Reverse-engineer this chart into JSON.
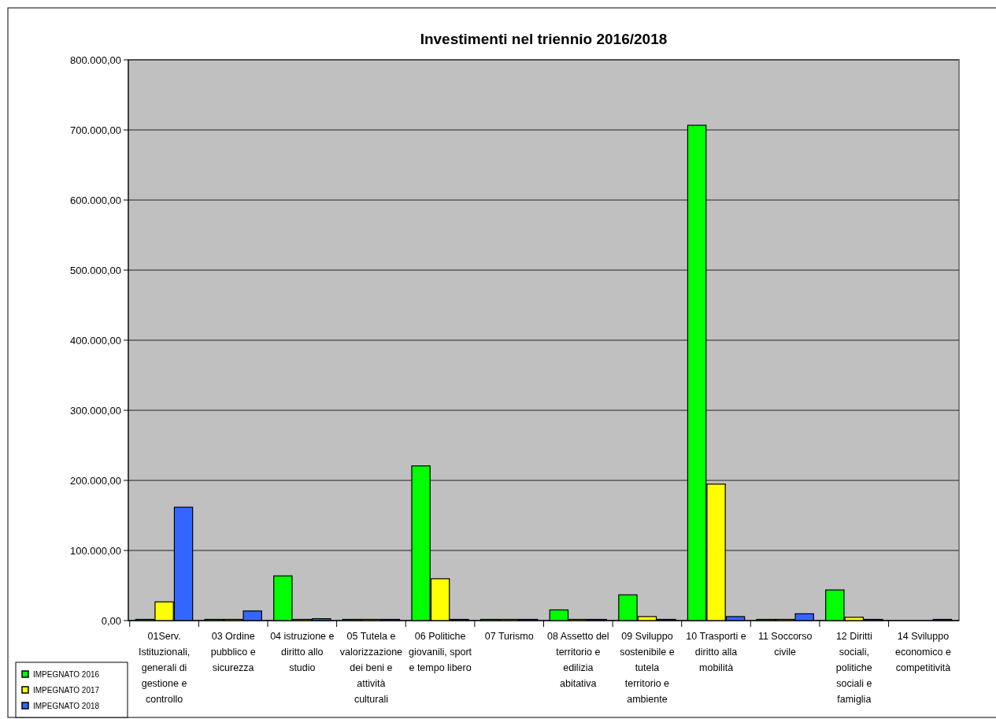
{
  "chart_data": {
    "type": "bar",
    "title": "Investimenti nel triennio 2016/2018",
    "categories": [
      "01Serv. Istituzionali, generali di gestione e controllo",
      "03 Ordine pubblico e sicurezza",
      "04 istruzione e diritto allo studio",
      "05 Tutela e valorizzazione dei beni e attività culturali",
      "06 Politiche giovanili, sport e tempo libero",
      "07 Turismo",
      "08 Assetto del territorio e edilizia abitativa",
      "09 Sviluppo sostenibile e tutela territorio e ambiente",
      "10 Trasporti e diritto alla mobilità",
      "11 Soccorso civile",
      "12 Diritti sociali, politiche sociali e famiglia",
      "14 Sviluppo economico e competitività"
    ],
    "series": [
      {
        "name": "IMPEGNATO 2016",
        "color": "#00ff00",
        "values": [
          0,
          0,
          62000,
          0,
          219000,
          0,
          13500,
          35000,
          705000,
          0,
          42000,
          null
        ]
      },
      {
        "name": "IMPEGNATO 2017",
        "color": "#ffff00",
        "values": [
          25000,
          0,
          0,
          0,
          58000,
          0,
          0,
          4000,
          193000,
          0,
          3000,
          null
        ]
      },
      {
        "name": "IMPEGNATO 2018",
        "color": "#3366ff",
        "values": [
          160000,
          12000,
          1000,
          0,
          0,
          0,
          0,
          0,
          4000,
          8000,
          0,
          0
        ]
      }
    ],
    "ylim": [
      0,
      800000
    ],
    "yticks": [
      {
        "value": 0,
        "label": "0,00"
      },
      {
        "value": 100000,
        "label": "100.000,00"
      },
      {
        "value": 200000,
        "label": "200.000,00"
      },
      {
        "value": 300000,
        "label": "300.000,00"
      },
      {
        "value": 400000,
        "label": "400.000,00"
      },
      {
        "value": 500000,
        "label": "500.000,00"
      },
      {
        "value": 600000,
        "label": "600.000,00"
      },
      {
        "value": 700000,
        "label": "700.000,00"
      },
      {
        "value": 800000,
        "label": "800.000,00"
      }
    ],
    "grid": "y",
    "legend": "bottom left"
  }
}
